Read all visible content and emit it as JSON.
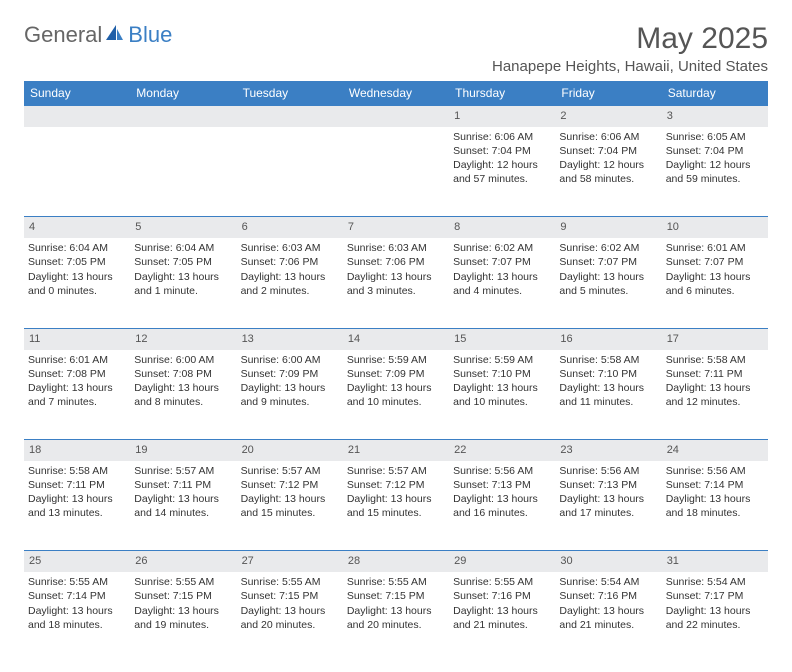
{
  "branding": {
    "part1": "General",
    "part2": "Blue"
  },
  "header": {
    "month_year": "May 2025",
    "location": "Hanapepe Heights, Hawaii, United States"
  },
  "colors": {
    "accent": "#3b7fc4",
    "header_row_bg": "#e9eaec",
    "text": "#333333",
    "muted": "#555555",
    "white": "#ffffff"
  },
  "days_of_week": [
    "Sunday",
    "Monday",
    "Tuesday",
    "Wednesday",
    "Thursday",
    "Friday",
    "Saturday"
  ],
  "weeks": [
    [
      null,
      null,
      null,
      null,
      {
        "n": "1",
        "sunrise": "Sunrise: 6:06 AM",
        "sunset": "Sunset: 7:04 PM",
        "daylight": "Daylight: 12 hours and 57 minutes."
      },
      {
        "n": "2",
        "sunrise": "Sunrise: 6:06 AM",
        "sunset": "Sunset: 7:04 PM",
        "daylight": "Daylight: 12 hours and 58 minutes."
      },
      {
        "n": "3",
        "sunrise": "Sunrise: 6:05 AM",
        "sunset": "Sunset: 7:04 PM",
        "daylight": "Daylight: 12 hours and 59 minutes."
      }
    ],
    [
      {
        "n": "4",
        "sunrise": "Sunrise: 6:04 AM",
        "sunset": "Sunset: 7:05 PM",
        "daylight": "Daylight: 13 hours and 0 minutes."
      },
      {
        "n": "5",
        "sunrise": "Sunrise: 6:04 AM",
        "sunset": "Sunset: 7:05 PM",
        "daylight": "Daylight: 13 hours and 1 minute."
      },
      {
        "n": "6",
        "sunrise": "Sunrise: 6:03 AM",
        "sunset": "Sunset: 7:06 PM",
        "daylight": "Daylight: 13 hours and 2 minutes."
      },
      {
        "n": "7",
        "sunrise": "Sunrise: 6:03 AM",
        "sunset": "Sunset: 7:06 PM",
        "daylight": "Daylight: 13 hours and 3 minutes."
      },
      {
        "n": "8",
        "sunrise": "Sunrise: 6:02 AM",
        "sunset": "Sunset: 7:07 PM",
        "daylight": "Daylight: 13 hours and 4 minutes."
      },
      {
        "n": "9",
        "sunrise": "Sunrise: 6:02 AM",
        "sunset": "Sunset: 7:07 PM",
        "daylight": "Daylight: 13 hours and 5 minutes."
      },
      {
        "n": "10",
        "sunrise": "Sunrise: 6:01 AM",
        "sunset": "Sunset: 7:07 PM",
        "daylight": "Daylight: 13 hours and 6 minutes."
      }
    ],
    [
      {
        "n": "11",
        "sunrise": "Sunrise: 6:01 AM",
        "sunset": "Sunset: 7:08 PM",
        "daylight": "Daylight: 13 hours and 7 minutes."
      },
      {
        "n": "12",
        "sunrise": "Sunrise: 6:00 AM",
        "sunset": "Sunset: 7:08 PM",
        "daylight": "Daylight: 13 hours and 8 minutes."
      },
      {
        "n": "13",
        "sunrise": "Sunrise: 6:00 AM",
        "sunset": "Sunset: 7:09 PM",
        "daylight": "Daylight: 13 hours and 9 minutes."
      },
      {
        "n": "14",
        "sunrise": "Sunrise: 5:59 AM",
        "sunset": "Sunset: 7:09 PM",
        "daylight": "Daylight: 13 hours and 10 minutes."
      },
      {
        "n": "15",
        "sunrise": "Sunrise: 5:59 AM",
        "sunset": "Sunset: 7:10 PM",
        "daylight": "Daylight: 13 hours and 10 minutes."
      },
      {
        "n": "16",
        "sunrise": "Sunrise: 5:58 AM",
        "sunset": "Sunset: 7:10 PM",
        "daylight": "Daylight: 13 hours and 11 minutes."
      },
      {
        "n": "17",
        "sunrise": "Sunrise: 5:58 AM",
        "sunset": "Sunset: 7:11 PM",
        "daylight": "Daylight: 13 hours and 12 minutes."
      }
    ],
    [
      {
        "n": "18",
        "sunrise": "Sunrise: 5:58 AM",
        "sunset": "Sunset: 7:11 PM",
        "daylight": "Daylight: 13 hours and 13 minutes."
      },
      {
        "n": "19",
        "sunrise": "Sunrise: 5:57 AM",
        "sunset": "Sunset: 7:11 PM",
        "daylight": "Daylight: 13 hours and 14 minutes."
      },
      {
        "n": "20",
        "sunrise": "Sunrise: 5:57 AM",
        "sunset": "Sunset: 7:12 PM",
        "daylight": "Daylight: 13 hours and 15 minutes."
      },
      {
        "n": "21",
        "sunrise": "Sunrise: 5:57 AM",
        "sunset": "Sunset: 7:12 PM",
        "daylight": "Daylight: 13 hours and 15 minutes."
      },
      {
        "n": "22",
        "sunrise": "Sunrise: 5:56 AM",
        "sunset": "Sunset: 7:13 PM",
        "daylight": "Daylight: 13 hours and 16 minutes."
      },
      {
        "n": "23",
        "sunrise": "Sunrise: 5:56 AM",
        "sunset": "Sunset: 7:13 PM",
        "daylight": "Daylight: 13 hours and 17 minutes."
      },
      {
        "n": "24",
        "sunrise": "Sunrise: 5:56 AM",
        "sunset": "Sunset: 7:14 PM",
        "daylight": "Daylight: 13 hours and 18 minutes."
      }
    ],
    [
      {
        "n": "25",
        "sunrise": "Sunrise: 5:55 AM",
        "sunset": "Sunset: 7:14 PM",
        "daylight": "Daylight: 13 hours and 18 minutes."
      },
      {
        "n": "26",
        "sunrise": "Sunrise: 5:55 AM",
        "sunset": "Sunset: 7:15 PM",
        "daylight": "Daylight: 13 hours and 19 minutes."
      },
      {
        "n": "27",
        "sunrise": "Sunrise: 5:55 AM",
        "sunset": "Sunset: 7:15 PM",
        "daylight": "Daylight: 13 hours and 20 minutes."
      },
      {
        "n": "28",
        "sunrise": "Sunrise: 5:55 AM",
        "sunset": "Sunset: 7:15 PM",
        "daylight": "Daylight: 13 hours and 20 minutes."
      },
      {
        "n": "29",
        "sunrise": "Sunrise: 5:55 AM",
        "sunset": "Sunset: 7:16 PM",
        "daylight": "Daylight: 13 hours and 21 minutes."
      },
      {
        "n": "30",
        "sunrise": "Sunrise: 5:54 AM",
        "sunset": "Sunset: 7:16 PM",
        "daylight": "Daylight: 13 hours and 21 minutes."
      },
      {
        "n": "31",
        "sunrise": "Sunrise: 5:54 AM",
        "sunset": "Sunset: 7:17 PM",
        "daylight": "Daylight: 13 hours and 22 minutes."
      }
    ]
  ]
}
